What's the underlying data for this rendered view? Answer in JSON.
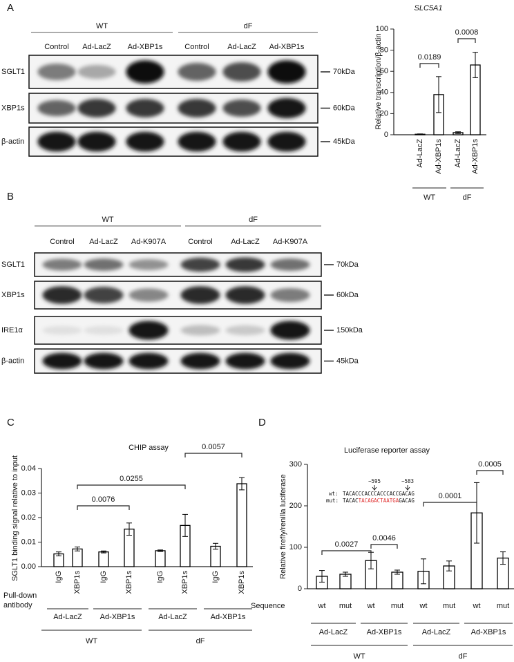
{
  "panel_labels": [
    "A",
    "B",
    "C",
    "D"
  ],
  "blots": [
    {
      "header_groups": [
        "WT",
        "dF"
      ],
      "lanes": [
        "Control",
        "Ad-LacZ",
        "Ad-XBP1s",
        "Control",
        "Ad-LacZ",
        "Ad-XBP1s"
      ],
      "rows": [
        "SGLT1",
        "XBP1s",
        "β-actin"
      ],
      "markers": [
        "70kDa",
        "60kDa",
        "45kDa"
      ]
    },
    {
      "header_groups": [
        "WT",
        "dF"
      ],
      "lanes": [
        "Control",
        "Ad-LacZ",
        "Ad-K907A",
        "Control",
        "Ad-LacZ",
        "Ad-K907A"
      ],
      "rows": [
        "SGLT1",
        "XBP1s",
        "IRE1α",
        "β-actin"
      ],
      "markers": [
        "70kDa",
        "60kDa",
        "150kDa",
        "45kDa"
      ]
    }
  ],
  "chart_data": [
    {
      "type": "bar",
      "title": "SLC5A1",
      "ylabel": "Relative transcription/β-actin",
      "categories": [
        "Ad-LacZ",
        "Ad-XBP1s",
        "Ad-LacZ",
        "Ad-XBP1s"
      ],
      "values": [
        0.5,
        38,
        2,
        66
      ],
      "errors": [
        0.3,
        17,
        0.8,
        12
      ],
      "groups": [
        "WT",
        "dF"
      ],
      "annotations": [
        "0.0189",
        "0.0008"
      ],
      "ylim": [
        0,
        100
      ],
      "yticks": [
        0,
        20,
        40,
        60,
        80,
        100
      ],
      "bar_fill": "#ffffff",
      "bar_edge": "#000000"
    },
    {
      "type": "bar",
      "title": "CHIP assay",
      "ylabel": "SGLT1 binding signal relative to input",
      "categories": [
        "IgG",
        "XBP1s",
        "IgG",
        "XBP1s",
        "IgG",
        "XBP1s",
        "IgG",
        "XBP1s"
      ],
      "values": [
        0.0052,
        0.0072,
        0.006,
        0.0153,
        0.0065,
        0.0168,
        0.0083,
        0.0338
      ],
      "errors": [
        0.0008,
        0.0008,
        0.0004,
        0.0025,
        0.0003,
        0.0045,
        0.0012,
        0.0025
      ],
      "row_label": [
        "Pull-down",
        "antibody"
      ],
      "subgroups": [
        "Ad-LacZ",
        "Ad-XBP1s",
        "Ad-LacZ",
        "Ad-XBP1s"
      ],
      "groups": [
        "WT",
        "dF"
      ],
      "annotations": [
        "0.0076",
        "0.0255",
        "0.0057"
      ],
      "ylim": [
        0,
        0.04
      ],
      "yticks": [
        {
          "value": 0,
          "label": "0.00"
        },
        {
          "value": 0.01,
          "label": "0.01"
        },
        {
          "value": 0.02,
          "label": "0.02"
        },
        {
          "value": 0.03,
          "label": "0.03"
        },
        {
          "value": 0.04,
          "label": "0.04"
        }
      ],
      "bar_fill": "#ffffff",
      "bar_edge": "#000000"
    },
    {
      "type": "bar",
      "title": "Luciferase reporter assay",
      "ylabel": "Relative firefly/renilla luciferase",
      "categories": [
        "wt",
        "mut",
        "wt",
        "mut",
        "wt",
        "mut",
        "wt",
        "mut"
      ],
      "values": [
        30,
        35,
        68,
        40,
        42,
        55,
        183,
        74
      ],
      "errors": [
        14,
        5,
        20,
        5,
        30,
        12,
        73,
        15
      ],
      "row_label": [
        "Sequence"
      ],
      "subgroups": [
        "Ad-LacZ",
        "Ad-XBP1s",
        "Ad-LacZ",
        "Ad-XBP1s"
      ],
      "groups": [
        "WT",
        "dF"
      ],
      "annotations": [
        "0.0027",
        "0.0046",
        "0.0001",
        "0.0005"
      ],
      "inset": {
        "positions": [
          "−595",
          "−583"
        ],
        "wt_label": "wt:",
        "wt_sequence": "TACACCCACCCACCCACCGACAG",
        "mut_label": "mut:",
        "mut_sequence": [
          "TACAC",
          "TACAGACTAATGA",
          "GACAG"
        ],
        "mut_color": "#e03030"
      },
      "ylim": [
        0,
        300
      ],
      "yticks": [
        0,
        100,
        200,
        300
      ],
      "bar_fill": "#ffffff",
      "bar_edge": "#000000"
    }
  ]
}
